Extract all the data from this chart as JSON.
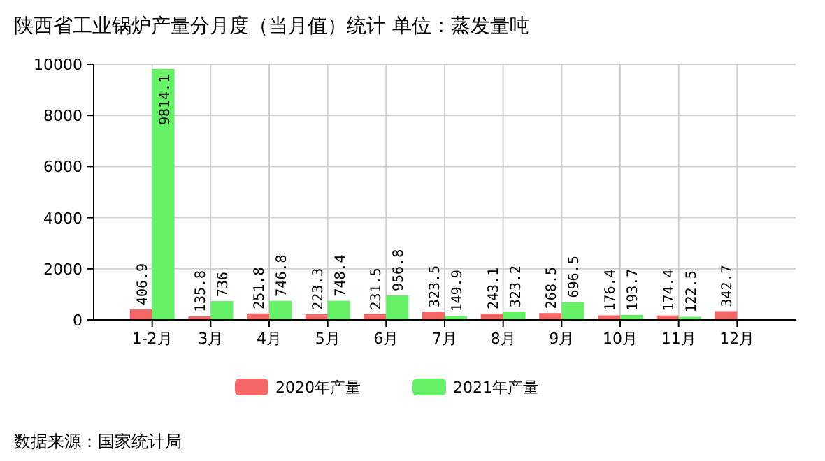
{
  "chart_data": {
    "type": "bar",
    "title": "陕西省工业锅炉产量分月度（当月值）统计 单位：蒸发量吨",
    "categories": [
      "1-2月",
      "3月",
      "4月",
      "5月",
      "6月",
      "7月",
      "8月",
      "9月",
      "10月",
      "11月",
      "12月"
    ],
    "series": [
      {
        "name": "2020年产量",
        "color": "#f56767",
        "values": [
          406.9,
          135.8,
          251.8,
          223.3,
          231.5,
          323.5,
          243.1,
          268.5,
          176.4,
          174.4,
          342.7
        ]
      },
      {
        "name": "2021年产量",
        "color": "#66f266",
        "values": [
          9814.1,
          736,
          746.8,
          748.4,
          956.8,
          149.9,
          323.2,
          696.5,
          193.7,
          122.5,
          null
        ]
      }
    ],
    "ylim": [
      0,
      10000
    ],
    "yticks": [
      0,
      2000,
      4000,
      6000,
      8000,
      10000
    ],
    "grid": true,
    "legend": "bottom",
    "data_labels": true,
    "annotations": [
      "数据来源：国家统计局"
    ]
  }
}
